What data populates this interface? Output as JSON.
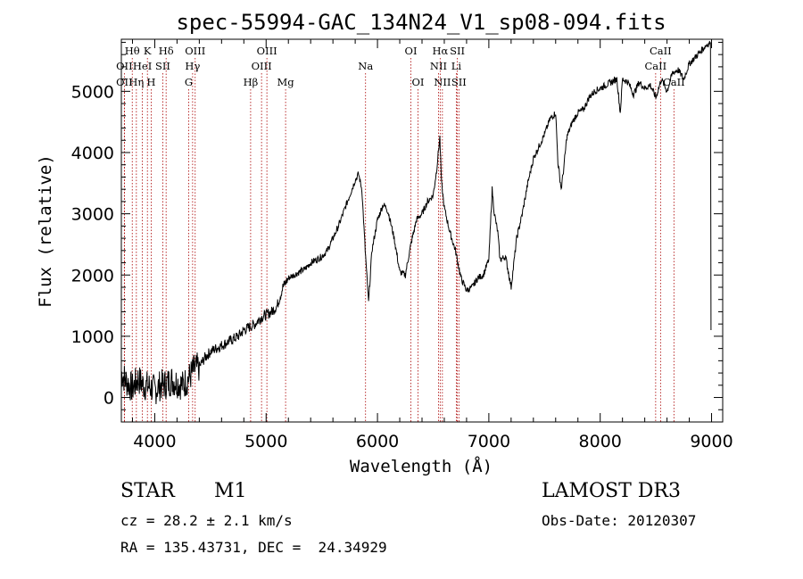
{
  "chart_data": {
    "type": "line",
    "title": "spec-55994-GAC_134N24_V1_sp08-094.fits",
    "xlabel": "Wavelength (Å)",
    "ylabel": "Flux (relative)",
    "xlim": [
      3700,
      9100
    ],
    "ylim": [
      -400,
      5850
    ],
    "xticks": [
      4000,
      5000,
      6000,
      7000,
      8000,
      9000
    ],
    "yticks": [
      0,
      1000,
      2000,
      3000,
      4000,
      5000
    ],
    "series": [
      {
        "name": "spectrum",
        "x": [
          3700,
          3750,
          3800,
          3850,
          3900,
          3950,
          4000,
          4050,
          4100,
          4150,
          4200,
          4250,
          4300,
          4350,
          4400,
          4450,
          4500,
          4550,
          4600,
          4650,
          4700,
          4750,
          4800,
          4850,
          4900,
          4950,
          5000,
          5050,
          5100,
          5150,
          5200,
          5250,
          5300,
          5350,
          5400,
          5450,
          5500,
          5550,
          5600,
          5650,
          5700,
          5750,
          5800,
          5830,
          5860,
          5890,
          5920,
          5950,
          6000,
          6050,
          6080,
          6100,
          6150,
          6200,
          6250,
          6300,
          6350,
          6400,
          6450,
          6500,
          6530,
          6560,
          6575,
          6600,
          6650,
          6700,
          6750,
          6800,
          6850,
          6900,
          6950,
          7000,
          7030,
          7050,
          7080,
          7100,
          7150,
          7200,
          7250,
          7300,
          7350,
          7400,
          7450,
          7500,
          7550,
          7600,
          7620,
          7650,
          7670,
          7700,
          7750,
          7800,
          7850,
          7900,
          7950,
          8000,
          8050,
          8100,
          8150,
          8180,
          8200,
          8250,
          8300,
          8350,
          8400,
          8450,
          8500,
          8550,
          8600,
          8650,
          8700,
          8750,
          8800,
          8850,
          8900,
          8950,
          8990
        ],
        "y": [
          400,
          250,
          150,
          300,
          200,
          180,
          120,
          200,
          220,
          280,
          250,
          200,
          300,
          450,
          500,
          650,
          750,
          800,
          850,
          900,
          950,
          1000,
          1100,
          1150,
          1200,
          1300,
          1350,
          1400,
          1500,
          1800,
          1950,
          2000,
          2050,
          2100,
          2200,
          2250,
          2300,
          2400,
          2600,
          2800,
          3050,
          3300,
          3550,
          3650,
          3400,
          2400,
          1550,
          2400,
          2900,
          3150,
          3100,
          3000,
          2600,
          2050,
          2000,
          2500,
          2900,
          3000,
          3200,
          3300,
          3700,
          4250,
          3500,
          3100,
          2700,
          2400,
          1950,
          1750,
          1800,
          1950,
          2000,
          2250,
          3400,
          3000,
          2700,
          2250,
          2300,
          1800,
          2600,
          3000,
          3500,
          3900,
          4100,
          4300,
          4550,
          4650,
          3850,
          3400,
          3700,
          4250,
          4500,
          4650,
          4700,
          4900,
          5000,
          5050,
          5100,
          5150,
          5200,
          4650,
          5200,
          5150,
          4950,
          5150,
          5050,
          5100,
          4900,
          5200,
          5000,
          5300,
          5350,
          5200,
          5450,
          5550,
          5650,
          5750,
          5800
        ]
      }
    ],
    "emission_lines": [
      {
        "label": "Hθ",
        "x": 3798,
        "row": 0
      },
      {
        "label": "K",
        "x": 3934,
        "row": 0
      },
      {
        "label": "Hδ",
        "x": 4102,
        "row": 0
      },
      {
        "label": "OIII",
        "x": 4363,
        "row": 0
      },
      {
        "label": "OIII",
        "x": 5007,
        "row": 0
      },
      {
        "label": "OI",
        "x": 6300,
        "row": 0
      },
      {
        "label": "Hα",
        "x": 6563,
        "row": 0
      },
      {
        "label": "SII",
        "x": 6717,
        "row": 0
      },
      {
        "label": "CaII",
        "x": 8542,
        "row": 0
      },
      {
        "label": "OII",
        "x": 3727,
        "row": 1
      },
      {
        "label": "HeI",
        "x": 3889,
        "row": 1
      },
      {
        "label": "SII",
        "x": 4072,
        "row": 1
      },
      {
        "label": "Hγ",
        "x": 4340,
        "row": 1
      },
      {
        "label": "OIII",
        "x": 4959,
        "row": 1
      },
      {
        "label": "Na",
        "x": 5893,
        "row": 1
      },
      {
        "label": "NII",
        "x": 6548,
        "row": 1
      },
      {
        "label": "Li",
        "x": 6708,
        "row": 1
      },
      {
        "label": "CaII",
        "x": 8498,
        "row": 1
      },
      {
        "label": "OII",
        "x": 3727,
        "row": 2
      },
      {
        "label": "Hη",
        "x": 3835,
        "row": 2
      },
      {
        "label": "H",
        "x": 3968,
        "row": 2
      },
      {
        "label": "G",
        "x": 4305,
        "row": 2
      },
      {
        "label": "Hβ",
        "x": 4861,
        "row": 2
      },
      {
        "label": "Mg",
        "x": 5175,
        "row": 2
      },
      {
        "label": "OI",
        "x": 6364,
        "row": 2
      },
      {
        "label": "NII",
        "x": 6583,
        "row": 2
      },
      {
        "label": "SII",
        "x": 6731,
        "row": 2
      },
      {
        "label": "CaII",
        "x": 8662,
        "row": 2
      }
    ]
  },
  "info": {
    "object_class": "STAR",
    "subclass": "M1",
    "survey": "LAMOST DR3",
    "cz": "cz = 28.2 ± 2.1 km/s",
    "obs_date": "Obs-Date: 20120307",
    "coords": "RA = 135.43731, DEC =  24.34929"
  },
  "colors": {
    "spectrum": "#000000",
    "line_marker": "#aa0000",
    "axes": "#000000"
  }
}
